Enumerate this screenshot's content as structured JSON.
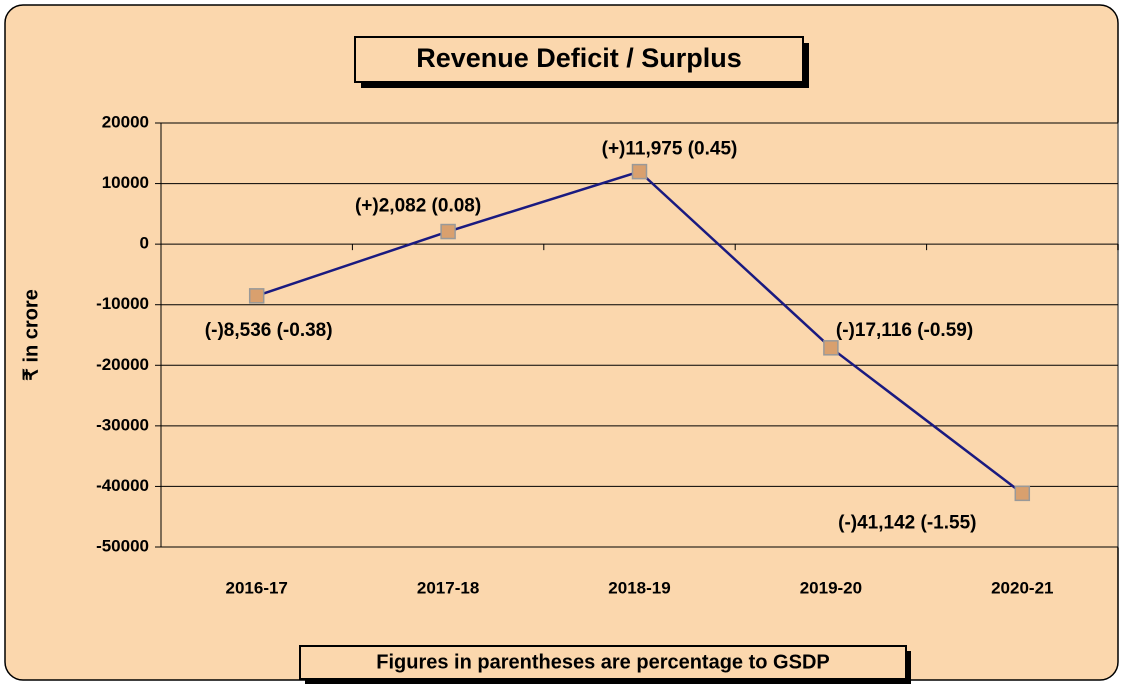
{
  "chart_data": {
    "type": "line",
    "title": "Revenue Deficit / Surplus",
    "y_label": "₹ in crore",
    "footnote": "Figures in parentheses are percentage to GSDP",
    "categories": [
      "2016-17",
      "2017-18",
      "2018-19",
      "2019-20",
      "2020-21"
    ],
    "values": [
      -8536,
      2082,
      11975,
      -17116,
      -41142
    ],
    "value_labels": [
      "(-)8,536 (-0.38)",
      "(+)2,082 (0.08)",
      "(+)11,975 (0.45)",
      "(-)17,116 (-0.59)",
      "(-)41,142 (-1.55)"
    ],
    "color": "#1a1a80",
    "marker_color": "#d9a06e",
    "ylim": [
      -50000,
      20000
    ],
    "yticks": [
      -50000,
      -40000,
      -30000,
      -20000,
      -10000,
      0,
      10000,
      20000
    ],
    "grid": true
  }
}
